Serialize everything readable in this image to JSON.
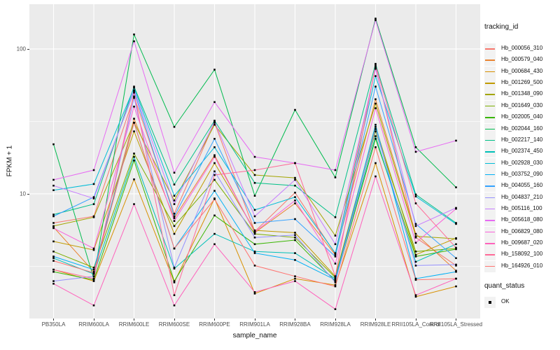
{
  "figure": {
    "background": "#FFFFFF",
    "panel_background": "#EBEBEB",
    "grid_color": "#FFFFFF",
    "tick_label_color": "#4D4D4D",
    "marker_color": "#000000"
  },
  "chart_data": {
    "type": "line",
    "title": "",
    "xlabel": "sample_name",
    "ylabel": "FPKM + 1",
    "y_scale": "log10",
    "y_ticks": [
      100,
      10
    ],
    "y_tick_labels": [
      "100",
      "10"
    ],
    "y_minor_gridlines": [
      31.62,
      3.162
    ],
    "ylim_log10": [
      0.14,
      2.309
    ],
    "grid": true,
    "legend_position": "right",
    "marker": "black-square",
    "categories": [
      "PB350LA",
      "RRIM600LA",
      "RRIM600LE",
      "RRIM600SE",
      "RRIM600PE",
      "RRIM901LA",
      "RRIM928BA",
      "RRIM928LA",
      "RRIM928LE",
      "RRII105LA_Control",
      "RRII105LA_Stressed"
    ],
    "series": [
      {
        "name": "Hb_000056_310",
        "color": "#F8766D",
        "values": [
          6.3,
          7.0,
          47,
          7.3,
          31,
          5.5,
          10.2,
          3.85,
          75,
          5.0,
          3.2
        ]
      },
      {
        "name": "Hb_000579_040",
        "color": "#EA8331",
        "values": [
          5.9,
          2.9,
          33,
          6.8,
          18.5,
          5.4,
          8.6,
          3.8,
          45,
          5.3,
          2.95
        ]
      },
      {
        "name": "Hb_000684_430",
        "color": "#D89000",
        "values": [
          3.0,
          2.5,
          12.6,
          2.45,
          9.3,
          2.05,
          2.6,
          2.35,
          16.3,
          1.95,
          2.3
        ]
      },
      {
        "name": "Hb_001269_500",
        "color": "#C09B00",
        "values": [
          4.7,
          4.1,
          27,
          5.3,
          16.3,
          5.6,
          5.4,
          2.7,
          29,
          3.8,
          4.95
        ]
      },
      {
        "name": "Hb_001348_090",
        "color": "#A3A500",
        "values": [
          6.0,
          6.9,
          31,
          9.0,
          30,
          13.5,
          12.9,
          5.15,
          42,
          5.1,
          4.9
        ]
      },
      {
        "name": "Hb_001649_030",
        "color": "#7CAE00",
        "values": [
          4.0,
          3.1,
          19,
          6.0,
          12.5,
          5.3,
          5.0,
          2.65,
          27,
          4.0,
          4.2
        ]
      },
      {
        "name": "Hb_002005_040",
        "color": "#39B600",
        "values": [
          2.9,
          2.55,
          17,
          2.5,
          7.1,
          4.5,
          4.8,
          2.5,
          24,
          3.7,
          4.15
        ]
      },
      {
        "name": "Hb_002044_160",
        "color": "#00BB4E",
        "values": [
          22,
          2.6,
          126,
          29,
          72,
          9.7,
          38,
          13,
          162,
          21,
          11.1
        ]
      },
      {
        "name": "Hb_002217_140",
        "color": "#00C087",
        "values": [
          7.2,
          8.5,
          55,
          11.6,
          32,
          11.9,
          11.4,
          6.9,
          79,
          9.9,
          6.3
        ]
      },
      {
        "name": "Hb_002374_450",
        "color": "#00C0B8",
        "values": [
          3.6,
          2.8,
          18,
          3.05,
          5.3,
          4.0,
          3.9,
          2.6,
          25,
          3.4,
          4.5
        ]
      },
      {
        "name": "Hb_002928_030",
        "color": "#00BCD8",
        "values": [
          10.6,
          11.7,
          54,
          9.7,
          21,
          7.75,
          9.5,
          3.9,
          65,
          9.6,
          6.2
        ]
      },
      {
        "name": "Hb_003752_090",
        "color": "#00B0F6",
        "values": [
          3.7,
          3.0,
          31,
          4.2,
          10.5,
          3.9,
          3.5,
          2.55,
          30,
          2.6,
          2.9
        ]
      },
      {
        "name": "Hb_004055_160",
        "color": "#35A2FF",
        "values": [
          7.0,
          9.5,
          51,
          7.0,
          24,
          6.3,
          6.7,
          3.7,
          55,
          6.2,
          3.6
        ]
      },
      {
        "name": "Hb_004837_210",
        "color": "#9590FF",
        "values": [
          2.5,
          2.7,
          46,
          3.1,
          14.3,
          5.0,
          5.2,
          2.45,
          28,
          3.2,
          3.25
        ]
      },
      {
        "name": "Hb_005116_100",
        "color": "#C77CFF",
        "values": [
          11.4,
          9.3,
          52,
          8.5,
          31.5,
          7.0,
          12.5,
          4.5,
          73,
          6.0,
          8.0
        ]
      },
      {
        "name": "Hb_005618_080",
        "color": "#E76BF3",
        "values": [
          12.5,
          14.6,
          113,
          14,
          43,
          18,
          16.3,
          14.6,
          158,
          19.5,
          23.3
        ]
      },
      {
        "name": "Hb_006829_080",
        "color": "#FA62DB",
        "values": [
          5.8,
          4.2,
          40,
          6.5,
          18,
          5.45,
          9.0,
          3.3,
          39,
          4.6,
          7.9
        ]
      },
      {
        "name": "Hb_009687_020",
        "color": "#FF62BC",
        "values": [
          2.4,
          1.7,
          8.5,
          1.7,
          4.5,
          2.1,
          2.5,
          1.6,
          13.2,
          2.0,
          2.6
        ]
      },
      {
        "name": "Hb_158092_100",
        "color": "#FF6A98",
        "values": [
          3.0,
          2.6,
          50,
          2.0,
          13.5,
          14.6,
          16.3,
          2.7,
          77,
          8.6,
          4.25
        ]
      },
      {
        "name": "Hb_164926_010",
        "color": "#FF7370",
        "values": [
          3.45,
          2.85,
          31,
          4.2,
          9.2,
          3.2,
          2.7,
          2.3,
          21,
          2.55,
          2.6
        ]
      }
    ],
    "legend": {
      "tracking_title": "tracking_id",
      "quant_title": "quant_status",
      "quant_items": [
        {
          "label": "OK",
          "marker": "black-square"
        }
      ]
    }
  }
}
